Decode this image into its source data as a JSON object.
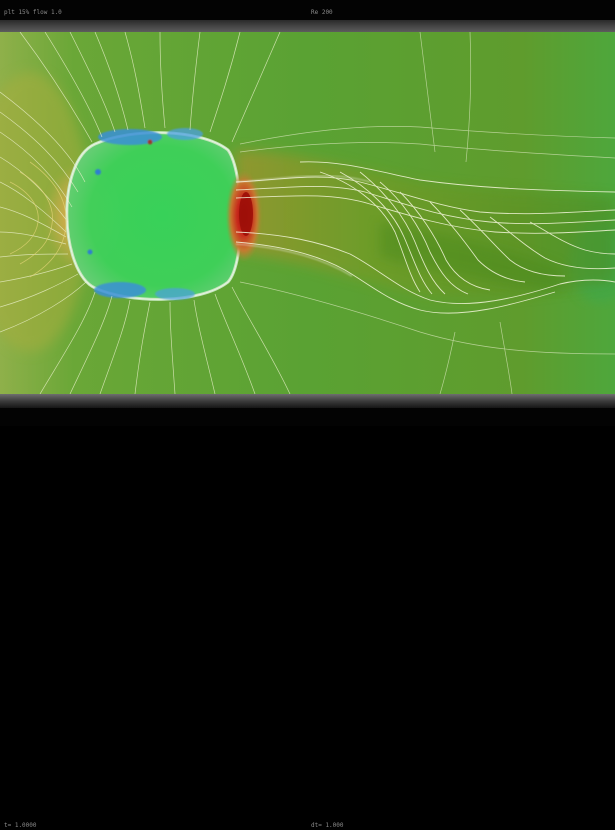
{
  "hud": {
    "top_left": "plt 15%  flow 1.0",
    "top_center": "Re 200",
    "bottom_left": "t= 1.0000",
    "bottom_center": "dt= 1.000"
  },
  "colors": {
    "background_field": "#5da533",
    "free_stream": "#62a52e",
    "body_interior": "#34d35a",
    "stagnation": "#d4a24d",
    "low_pressure": "#b81d10",
    "vortex_core": "#3c96d8",
    "contour": "#e8f0c8"
  },
  "icons": [
    "cylinder-body-icon"
  ]
}
